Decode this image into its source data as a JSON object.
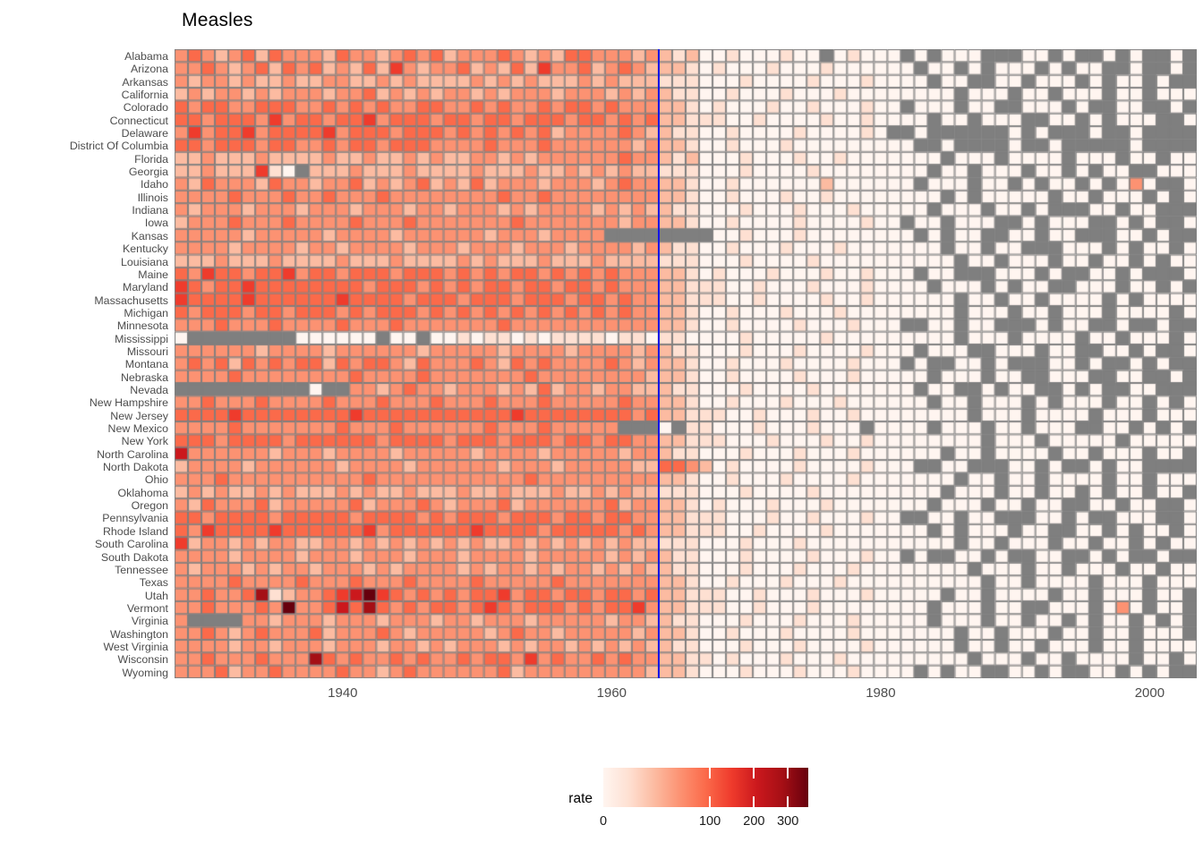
{
  "page": {
    "background": "#FFFFFF"
  },
  "chart_data": {
    "type": "heatmap",
    "title": "Measles",
    "x": {
      "label": "",
      "start_year": 1928,
      "end_year": 2003,
      "ticks": [
        1940,
        1960,
        1980,
        2000
      ]
    },
    "y": {
      "states": [
        "Alabama",
        "Arizona",
        "Arkansas",
        "California",
        "Colorado",
        "Connecticut",
        "Delaware",
        "District Of Columbia",
        "Florida",
        "Georgia",
        "Idaho",
        "Illinois",
        "Indiana",
        "Iowa",
        "Kansas",
        "Kentucky",
        "Louisiana",
        "Maine",
        "Maryland",
        "Massachusetts",
        "Michigan",
        "Minnesota",
        "Mississippi",
        "Missouri",
        "Montana",
        "Nebraska",
        "Nevada",
        "New Hampshire",
        "New Jersey",
        "New Mexico",
        "New York",
        "North Carolina",
        "North Dakota",
        "Ohio",
        "Oklahoma",
        "Oregon",
        "Pennsylvania",
        "Rhode Island",
        "South Carolina",
        "South Dakota",
        "Tennessee",
        "Texas",
        "Utah",
        "Vermont",
        "Virginia",
        "Washington",
        "West Virginia",
        "Wisconsin",
        "Wyoming"
      ]
    },
    "legend": {
      "label": "rate",
      "ticks": [
        0,
        100,
        200,
        300
      ],
      "scale": "sqrt",
      "max_value": 370
    },
    "vaccine_line": {
      "year": 1963,
      "color": "#1414E8"
    },
    "palette": {
      "colors": [
        "#FFF5F0",
        "#FEE0D2",
        "#FCBBA1",
        "#FC9272",
        "#FB6A4A",
        "#EF3B2C",
        "#CB181D",
        "#A50F15",
        "#67000D"
      ],
      "na_color": "#7F7F7F",
      "grid_color": "#7E7E7E"
    },
    "value_encoding": "each row string has one char per year 1928-2003; digit d (0-8) means rate ~ 370*(d/8)^2 per 100k (sqrt color scale); '.' means missing (gray)",
    "rows": [
      "343234243332433234342333432324433323212001000100.01000.0.000...00.0..0.0..0.",
      "3343234243423242532334232425334234322210100010001000000.00.0.000.0.00..0..0.",
      "32332322322332232322223232322232322211100010000100010000.00..00.000.0.00.0..",
      "2323323233323342323233232333233323232110010001000100000000.000.00.000.00.000",
      "434433444334343433443343433434434333221010001001000100.000.00..000.0..00..0.",
      "44344435344344534443443443444344343422111001000010010000.00.000..00.0.000..0",
      "35344534444534443444343434342333343221100100001000010..0......0.0...0..0....",
      "44344434433434434443333433343333332322100100010000000 0..0....0..0.....0....",
      "223222322223223223232233232333333433212000100010010000 00.000.0000.000.00.00",
      "223222510.2223222322223222322323232211100010000100000000.00.000.00.0.00..000",
      "3243332433233423234232423332333234332210010000002000 00.000.00.0.00.0.030..0.",
      "333343334334333433333333433433333333221001000100100000 00.0.00000.00.000.0.00",
      "32333233323332333233233323233332323221100010001000100 00.000.00.0...00.00...0",
      "233343334333343334333333343333333233221001000010000100.00.000..0.000..0.0..0",
      "33333233333233332333333233323333........0010001000000 0.0.00..00.00...00.0..0",
      "3333233332332333323332333233323333232110010001000100000 0.00.00...000.0.00.0.",
      "222322232222322232222323222322232222111000100001000000 000.00.000.00.00.0.000",
      "4354434453443444344434343443434343332210100010001001 00.00...000.0..00.0...00",
      "54344544444444344434343443443443433322111001000100010 0 .000.0.00..000.00.0.0",
      "544445444444544443444344434443443433221110010000100100 000.00.00.0000.0.00000",
      "434443443444343444343434343434343433221001000100010000 000.000.00.000.0000.00",
      "333433343333433343333333433333333333221001000010001000..00.00...0.00..0..0..",
      "0........000000.00.001011010111101101100001000001000000 00.000.0000.00.000.00",
      "3333332333323333332333332333323333232110001000100001000.000..000.00..00.0..0",
      "343424343442434432433343243433334323221001000100001000.0..00.0...00.0..0.0..",
      "333343333333343333433333334333333332221001000010001000 0.000.00..000..00..0.0",
      "..........(..3323433233323242332332221100010000100000 0.00..0.00..0.0..00...0",
      "33433343333433343334333433343333343322100100010001000000.00.000.0.000.00.0.0",
      "444454444444454444444444454444444434221110010001001 00 0000.000.0000.000.0000",
      "333343333333433343333334333433333...(.1100010001000.0000.000.00.000..00.0.0.0",
      "4443444434444443444434443444344344332211100010001001000 0000.000.00000.000000",
      "633333323332333323333323333233333233211000100010001000 00.00.0000.00.000.00.0",
      "2333323333332333323333332333233333224432010000100001 00..00...00.0..0.00....0",
      "333433333333334333333333334333333333221001000100001000 000.00.00.0000.00.0000",
      "232322323222323223222322322232232322111000100001000000 00.000.00.00.0.00.00.0",
      "3243334233333423334323334233333342332210100010001000 000.000.00.00..00.00..00",
      "443444434444434444343444344434434433221110001001000100..00.00...00.0..000..0",
      "43544445444444534444445444434444434322111001000010000 00.0.000.00..00.0.00.00",
      "523323233223323232323232232323232322111000100010000000 000.00.000.00.00.0.000",
      "333323333233323332333233332333332323211000100001000100.0..00.0..00..0.0..0..",
      "323332323323332323333232332323323232211000100010001 000 000.000.00.000.00.0000",
      "33334333343334333433334333334333333322100100010001000 000000.00.0000.000.0000",
      "3343347123345685434343445344344344342211100100010001000 0.00.0000.00.000.00.0",
      "33433343833464743434434543444343445322111001000100000 00.000.00..000.030.00..",
      "3....3323332333233323323332333332332211000100010001000 0.000.00.00.0.00.0.0..",
      "3343234333423334323333323433233333232210010001000010 0 000.00.000.00.00.000.00",
      "3333233233323332332323332323323232322110001000100001000 00.00.00.000.00.00000",
      "334333433374343343433434435343343433221101000100010 00 0000.000.00.0000.00.000",
      "33342334333343323433333342333333333222100010001000100 0.0.00..00.0..00.0.0..0"
    ]
  }
}
